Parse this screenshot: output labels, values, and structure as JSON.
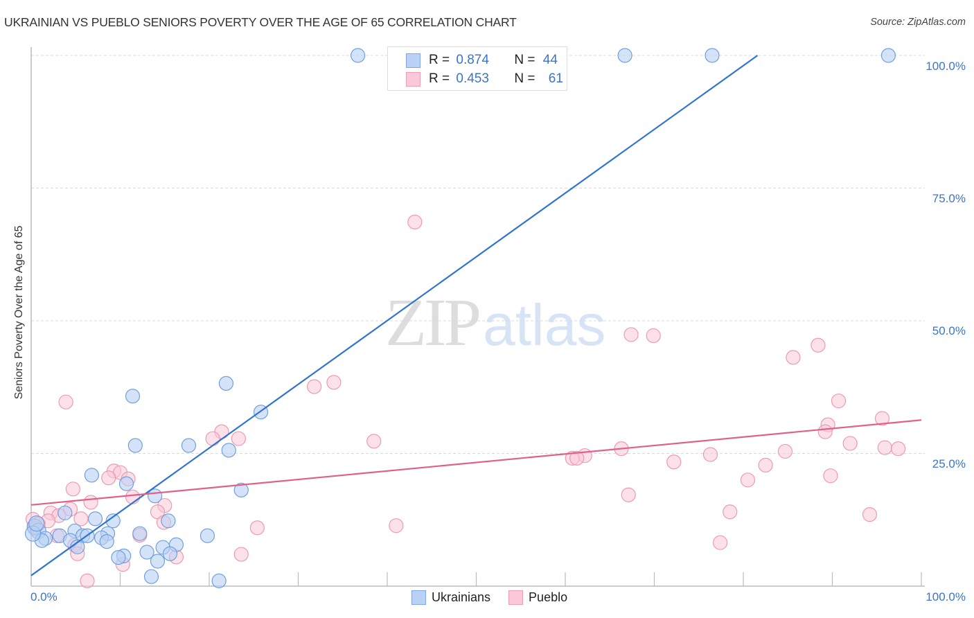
{
  "header": {
    "title": "UKRAINIAN VS PUEBLO SENIORS POVERTY OVER THE AGE OF 65 CORRELATION CHART",
    "source": "Source: ZipAtlas.com"
  },
  "legend": {
    "series": [
      {
        "name": "Ukrainians",
        "r_label": "R =",
        "r_value": "0.874",
        "n_label": "N =",
        "n_value": "44",
        "color": "#6a9be0",
        "fill": "#b9d1f4"
      },
      {
        "name": "Pueblo",
        "r_label": "R =",
        "r_value": "0.453",
        "n_label": "N =",
        "n_value": "61",
        "color": "#e8769c",
        "fill": "#fbc8d7"
      }
    ]
  },
  "axes": {
    "ylabel": "Seniors Poverty Over the Age of 65",
    "y_ticks": [
      "100.0%",
      "75.0%",
      "50.0%",
      "25.0%"
    ],
    "x_ticks": [
      "0.0%",
      "100.0%"
    ]
  },
  "watermark": {
    "zip": "ZIP",
    "atlas": "atlas"
  },
  "colors": {
    "accent_blue": "#2f74d0",
    "accent_pink": "#e0608c",
    "tick_text": "#3b74c8"
  },
  "chart_data": {
    "type": "scatter",
    "title": "UKRAINIAN VS PUEBLO SENIORS POVERTY OVER THE AGE OF 65 CORRELATION CHART",
    "xlabel": "",
    "ylabel": "Seniors Poverty Over the Age of 65",
    "xlim": [
      0,
      100
    ],
    "ylim": [
      0,
      100
    ],
    "grid": true,
    "legend_position": "top-center",
    "series": [
      {
        "name": "Ukrainians",
        "r": 0.874,
        "n": 44,
        "trendline": {
          "x": [
            0,
            81.6
          ],
          "y": [
            2.0,
            100
          ]
        },
        "points": [
          [
            36.7,
            100
          ],
          [
            66.7,
            100
          ],
          [
            76.5,
            100
          ],
          [
            96.3,
            100
          ],
          [
            11.4,
            35.8
          ],
          [
            21.9,
            38.2
          ],
          [
            25.8,
            32.8
          ],
          [
            11.7,
            26.5
          ],
          [
            17.7,
            26.5
          ],
          [
            22.2,
            25.6
          ],
          [
            6.8,
            20.9
          ],
          [
            10.7,
            19.3
          ],
          [
            23.6,
            18.1
          ],
          [
            13.9,
            17.0
          ],
          [
            3.8,
            13.8
          ],
          [
            7.2,
            12.7
          ],
          [
            9.2,
            12.3
          ],
          [
            15.4,
            12.3
          ],
          [
            0.4,
            11.2
          ],
          [
            0.8,
            10.4
          ],
          [
            4.9,
            10.4
          ],
          [
            8.6,
            9.9
          ],
          [
            12.2,
            9.9
          ],
          [
            19.8,
            9.5
          ],
          [
            3.2,
            9.5
          ],
          [
            1.6,
            9.0
          ],
          [
            1.2,
            8.6
          ],
          [
            4.4,
            8.6
          ],
          [
            5.8,
            9.5
          ],
          [
            6.3,
            9.5
          ],
          [
            7.9,
            9.1
          ],
          [
            8.5,
            8.4
          ],
          [
            5.2,
            7.4
          ],
          [
            14.8,
            7.3
          ],
          [
            16.3,
            7.8
          ],
          [
            13.0,
            6.4
          ],
          [
            15.6,
            6.1
          ],
          [
            10.4,
            5.7
          ],
          [
            9.8,
            5.4
          ],
          [
            14.2,
            4.7
          ],
          [
            13.5,
            1.8
          ],
          [
            21.1,
            1.0
          ],
          [
            0.2,
            9.9
          ],
          [
            0.6,
            11.8
          ]
        ]
      },
      {
        "name": "Pueblo",
        "r": 0.453,
        "n": 61,
        "trendline": {
          "x": [
            0,
            100
          ],
          "y": [
            15.3,
            31.3
          ]
        },
        "points": [
          [
            43.1,
            68.6
          ],
          [
            67.4,
            47.4
          ],
          [
            69.9,
            47.2
          ],
          [
            88.4,
            45.4
          ],
          [
            85.6,
            43.1
          ],
          [
            34.0,
            38.4
          ],
          [
            31.8,
            37.6
          ],
          [
            3.9,
            34.7
          ],
          [
            90.7,
            34.9
          ],
          [
            95.6,
            31.6
          ],
          [
            89.5,
            30.4
          ],
          [
            21.4,
            29.1
          ],
          [
            89.2,
            29.1
          ],
          [
            20.4,
            27.8
          ],
          [
            23.3,
            27.8
          ],
          [
            38.5,
            27.3
          ],
          [
            92.0,
            26.9
          ],
          [
            95.9,
            26.1
          ],
          [
            97.4,
            25.9
          ],
          [
            66.3,
            25.9
          ],
          [
            76.3,
            24.8
          ],
          [
            84.7,
            25.4
          ],
          [
            62.2,
            24.6
          ],
          [
            60.8,
            24.1
          ],
          [
            61.3,
            24.1
          ],
          [
            72.2,
            23.4
          ],
          [
            82.5,
            22.8
          ],
          [
            9.3,
            21.7
          ],
          [
            10.0,
            21.4
          ],
          [
            8.7,
            20.4
          ],
          [
            10.9,
            20.2
          ],
          [
            80.5,
            20.0
          ],
          [
            89.8,
            20.8
          ],
          [
            4.7,
            18.3
          ],
          [
            11.4,
            16.8
          ],
          [
            67.1,
            17.2
          ],
          [
            6.7,
            15.8
          ],
          [
            15.0,
            15.2
          ],
          [
            4.4,
            14.5
          ],
          [
            2.2,
            13.8
          ],
          [
            3.1,
            13.3
          ],
          [
            78.5,
            14.0
          ],
          [
            94.2,
            13.5
          ],
          [
            14.2,
            14.0
          ],
          [
            5.6,
            12.7
          ],
          [
            14.9,
            12.0
          ],
          [
            1.9,
            12.3
          ],
          [
            0.2,
            12.6
          ],
          [
            0.8,
            11.7
          ],
          [
            41.0,
            11.4
          ],
          [
            25.4,
            11.0
          ],
          [
            12.2,
            9.6
          ],
          [
            4.9,
            7.7
          ],
          [
            77.4,
            8.2
          ],
          [
            5.2,
            6.1
          ],
          [
            16.3,
            5.5
          ],
          [
            23.6,
            6.0
          ],
          [
            10.3,
            4.1
          ],
          [
            6.3,
            1.0
          ],
          [
            2.9,
            9.5
          ],
          [
            0.4,
            10.9
          ]
        ]
      }
    ]
  }
}
